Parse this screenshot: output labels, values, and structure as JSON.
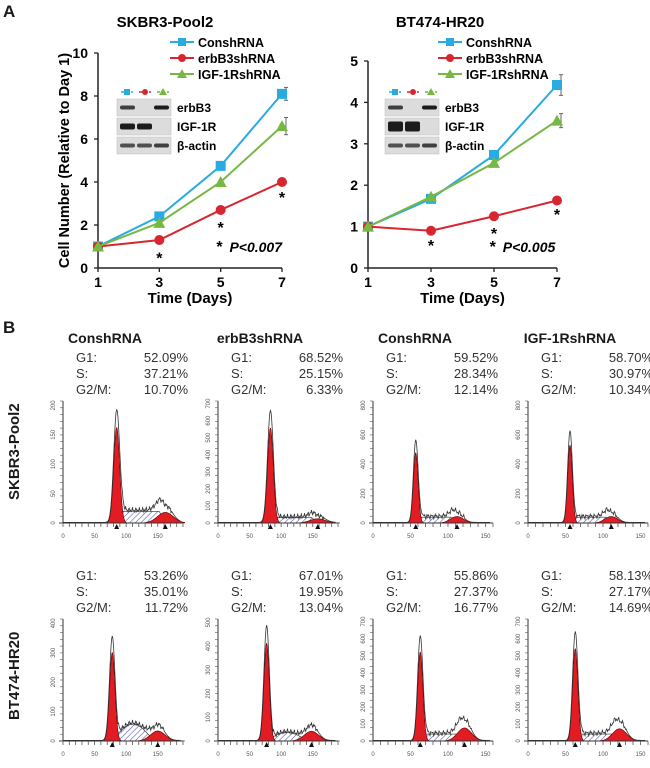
{
  "panel_a_label": "A",
  "panel_b_label": "B",
  "series_colors": {
    "ConshRNA": "#29abe2",
    "erbB3shRNA": "#d7262f",
    "IGF-1RshRNA": "#77b843"
  },
  "blot_labels": [
    "erbB3",
    "IGF-1R",
    "β-actin"
  ],
  "chart_data": [
    {
      "type": "line",
      "title": "SKBR3-Pool2",
      "xlabel": "Time (Days)",
      "ylabel": "Cell Number (Relative to Day 1)",
      "x": [
        1,
        3,
        5,
        7
      ],
      "xticks": [
        "1",
        "3",
        "5",
        "7"
      ],
      "yticks": [
        "0",
        "2",
        "4",
        "6",
        "8",
        "10"
      ],
      "ylim": [
        0,
        10
      ],
      "legend": "top-right",
      "series": [
        {
          "name": "ConshRNA",
          "marker": "square",
          "values": [
            1.0,
            2.4,
            4.75,
            8.1
          ],
          "err": [
            0,
            0.05,
            0.08,
            0.3
          ]
        },
        {
          "name": "erbB3shRNA",
          "marker": "circle",
          "values": [
            1.0,
            1.3,
            2.7,
            4.0
          ],
          "err": [
            0,
            0.05,
            0.06,
            0.1
          ]
        },
        {
          "name": "IGF-1RshRNA",
          "marker": "triangle",
          "values": [
            1.0,
            2.1,
            4.0,
            6.6
          ],
          "err": [
            0,
            0.05,
            0.08,
            0.4
          ]
        }
      ],
      "significance_marks": [
        {
          "x": 3,
          "y": 0.5
        },
        {
          "x": 5,
          "y": 1.9
        },
        {
          "x": 7,
          "y": 3.3
        }
      ],
      "annotation": {
        "star": "*",
        "text": "P<0.007"
      }
    },
    {
      "type": "line",
      "title": "BT474-HR20",
      "xlabel": "Time (Days)",
      "ylabel": "",
      "x": [
        1,
        3,
        5,
        7
      ],
      "xticks": [
        "1",
        "3",
        "5",
        "7"
      ],
      "yticks": [
        "0",
        "1",
        "2",
        "3",
        "4",
        "5"
      ],
      "ylim": [
        0,
        5
      ],
      "legend": "top-right",
      "series": [
        {
          "name": "ConshRNA",
          "marker": "square",
          "values": [
            1.0,
            1.67,
            2.73,
            4.42
          ],
          "err": [
            0,
            0.03,
            0.05,
            0.25
          ]
        },
        {
          "name": "erbB3shRNA",
          "marker": "circle",
          "values": [
            1.0,
            0.9,
            1.25,
            1.63
          ],
          "err": [
            0,
            0.02,
            0.03,
            0.04
          ]
        },
        {
          "name": "IGF-1RshRNA",
          "marker": "triangle",
          "values": [
            1.0,
            1.72,
            2.54,
            3.56
          ],
          "err": [
            0,
            0.03,
            0.05,
            0.17
          ]
        }
      ],
      "significance_marks": [
        {
          "x": 3,
          "y": 0.55
        },
        {
          "x": 5,
          "y": 0.85
        },
        {
          "x": 7,
          "y": 1.3
        }
      ],
      "annotation": {
        "star": "*",
        "text": "P<0.005"
      }
    },
    {
      "type": "area",
      "description": "DNA content flow cytometry histograms (cell cycle)",
      "rows": [
        "SKBR3-Pool2",
        "BT474-HR20"
      ],
      "columns": [
        "ConshRNA",
        "erbB3shRNA",
        "ConshRNA",
        "IGF-1RshRNA"
      ],
      "histograms": [
        {
          "row": "SKBR3-Pool2",
          "title": "ConshRNA",
          "G1": "52.09%",
          "S": "37.21%",
          "G2M": "10.70%",
          "xticks": [
            "0",
            "50",
            "100",
            "150"
          ],
          "yticks": [
            "0",
            "50",
            "100",
            "150",
            "200"
          ],
          "ymax": 230,
          "xmax": 190,
          "g1_peak": 85,
          "g1_height": 180,
          "g2_peak": 162,
          "g2_height": 20,
          "s_level": 22,
          "s_shape": "flat"
        },
        {
          "row": "SKBR3-Pool2",
          "title": "erbB3shRNA",
          "G1": "68.52%",
          "S": "25.15%",
          "G2M": "6.33%",
          "xticks": [
            "0",
            "50",
            "100",
            "150"
          ],
          "yticks": [
            "0",
            "100",
            "200",
            "300",
            "400",
            "500",
            "600",
            "700"
          ],
          "ymax": 720,
          "xmax": 190,
          "g1_peak": 83,
          "g1_height": 560,
          "g2_peak": 158,
          "g2_height": 25,
          "s_level": 32,
          "s_shape": "flat"
        },
        {
          "row": "SKBR3-Pool2",
          "title": "ConshRNA",
          "G1": "59.52%",
          "S": "28.34%",
          "G2M": "12.14%",
          "xticks": [
            "0",
            "50",
            "100",
            "150"
          ],
          "yticks": [
            "0",
            "200",
            "400",
            "600",
            "800"
          ],
          "ymax": 940,
          "xmax": 160,
          "g1_peak": 57,
          "g1_height": 540,
          "g2_peak": 112,
          "g2_height": 50,
          "s_level": 45,
          "s_shape": "flat"
        },
        {
          "row": "SKBR3-Pool2",
          "title": "IGF-1RshRNA",
          "G1": "58.70%",
          "S": "30.97%",
          "G2M": "10.34%",
          "xticks": [
            "0",
            "50",
            "100",
            "150"
          ],
          "yticks": [
            "0",
            "200",
            "400",
            "600",
            "800"
          ],
          "ymax": 940,
          "xmax": 160,
          "g1_peak": 56,
          "g1_height": 600,
          "g2_peak": 111,
          "g2_height": 50,
          "s_level": 45,
          "s_shape": "flat"
        },
        {
          "row": "BT474-HR20",
          "title": "",
          "G1": "53.26%",
          "S": "35.01%",
          "G2M": "11.72%",
          "xticks": [
            "0",
            "50",
            "100",
            "150"
          ],
          "yticks": [
            "0",
            "100",
            "200",
            "300",
            "400"
          ],
          "ymax": 400,
          "xmax": 190,
          "g1_peak": 78,
          "g1_height": 290,
          "g2_peak": 150,
          "g2_height": 33,
          "s_level": 55,
          "s_shape": "hump"
        },
        {
          "row": "BT474-HR20",
          "title": "",
          "G1": "67.01%",
          "S": "19.95%",
          "G2M": "13.04%",
          "xticks": [
            "0",
            "50",
            "100",
            "150"
          ],
          "yticks": [
            "0",
            "100",
            "200",
            "300",
            "400",
            "500"
          ],
          "ymax": 500,
          "xmax": 190,
          "g1_peak": 77,
          "g1_height": 400,
          "g2_peak": 148,
          "g2_height": 40,
          "s_level": 35,
          "s_shape": "hump"
        },
        {
          "row": "BT474-HR20",
          "title": "",
          "G1": "55.86%",
          "S": "27.37%",
          "G2M": "16.77%",
          "xticks": [
            "0",
            "50",
            "100",
            "150"
          ],
          "yticks": [
            "0",
            "100",
            "200",
            "300",
            "400",
            "500",
            "600",
            "700"
          ],
          "ymax": 700,
          "xmax": 160,
          "g1_peak": 63,
          "g1_height": 510,
          "g2_peak": 122,
          "g2_height": 75,
          "s_level": 40,
          "s_shape": "flat"
        },
        {
          "row": "BT474-HR20",
          "title": "",
          "G1": "58.13%",
          "S": "27.17%",
          "G2M": "14.69%",
          "xticks": [
            "0",
            "50",
            "100",
            "150"
          ],
          "yticks": [
            "0",
            "100",
            "200",
            "300",
            "400",
            "500",
            "600",
            "700"
          ],
          "ymax": 700,
          "xmax": 160,
          "g1_peak": 63,
          "g1_height": 530,
          "g2_peak": 122,
          "g2_height": 70,
          "s_level": 40,
          "s_shape": "flat"
        }
      ],
      "stat_labels": {
        "G1": "G1:",
        "S": "S:",
        "G2M": "G2/M:"
      }
    }
  ]
}
